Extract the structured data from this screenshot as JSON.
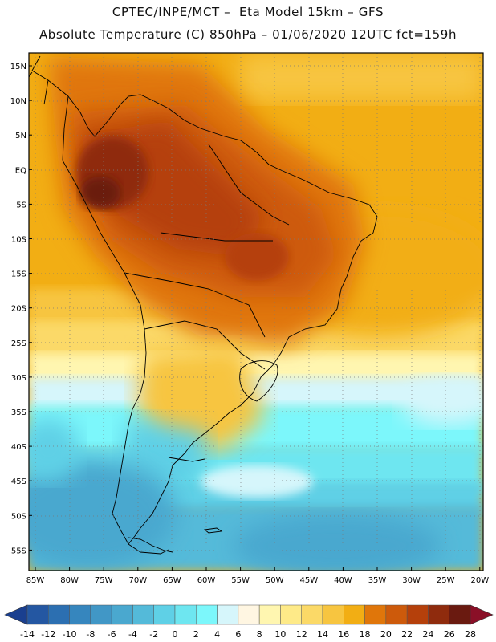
{
  "header": {
    "line1": "CPTEC/INPE/MCT –  Eta Model 15km – GFS",
    "line2": "Absolute Temperature (C) 850hPa – 01/06/2020 12UTC fct=159h"
  },
  "map": {
    "lat_labels": [
      "15N",
      "10N",
      "5N",
      "EQ",
      "5S",
      "10S",
      "15S",
      "20S",
      "25S",
      "30S",
      "35S",
      "40S",
      "45S",
      "50S",
      "55S"
    ],
    "lon_labels": [
      "85W",
      "80W",
      "75W",
      "70W",
      "65W",
      "60W",
      "55W",
      "50W",
      "45W",
      "40W",
      "35W",
      "30W",
      "25W",
      "20W"
    ],
    "region": "South America"
  },
  "legend": {
    "labels": [
      "-14",
      "-12",
      "-10",
      "-8",
      "-6",
      "-4",
      "-2",
      "0",
      "2",
      "4",
      "6",
      "8",
      "10",
      "12",
      "14",
      "16",
      "18",
      "20",
      "22",
      "24",
      "26",
      "28"
    ],
    "colors": [
      "#1a3f8f",
      "#2457a2",
      "#2c6fb1",
      "#3686be",
      "#4197c6",
      "#4aa8cf",
      "#54bad9",
      "#5fd0e6",
      "#6ee6f0",
      "#7cf7fb",
      "#d6f6fb",
      "#fff6e2",
      "#fff6b0",
      "#feea88",
      "#fbd967",
      "#f7c540",
      "#f2ae14",
      "#e0760a",
      "#cd5a0b",
      "#b5400b",
      "#8f2b0d",
      "#6a1a10",
      "#8a0f27"
    ]
  }
}
